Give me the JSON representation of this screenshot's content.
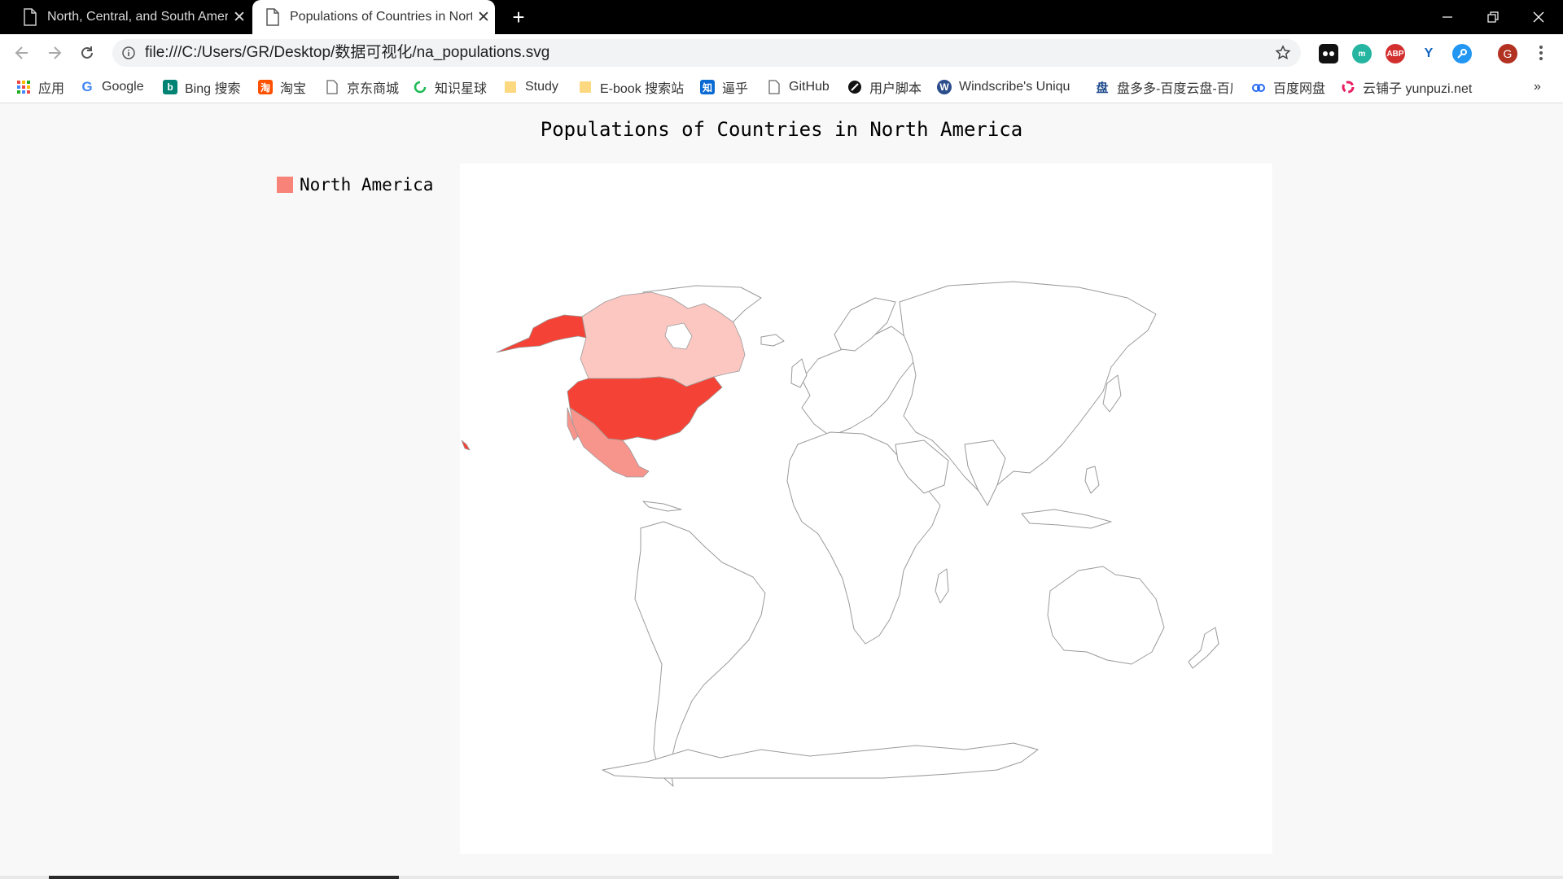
{
  "browser": {
    "tabs": [
      {
        "label": "North, Central, and South America",
        "active": false
      },
      {
        "label": "Populations of Countries in North America",
        "active": true
      }
    ],
    "address_bar": {
      "url": "file:///C:/Users/GR/Desktop/数据可视化/na_populations.svg"
    },
    "profile_initial": "G",
    "extensions": [
      {
        "name": "extension-1",
        "text": ""
      },
      {
        "name": "extension-2",
        "text": "m"
      },
      {
        "name": "adblock",
        "text": "ABP"
      },
      {
        "name": "extension-4",
        "text": "Y"
      },
      {
        "name": "extension-5",
        "text": ""
      }
    ],
    "bookmarks": [
      {
        "label": "应用",
        "icon": "apps-grid-icon"
      },
      {
        "label": "Google",
        "icon": "google-icon"
      },
      {
        "label": "Bing 搜索",
        "icon": "bing-icon"
      },
      {
        "label": "淘宝",
        "icon": "taobao-icon"
      },
      {
        "label": "京东商城",
        "icon": "page-icon"
      },
      {
        "label": "知识星球",
        "icon": "ring-icon"
      },
      {
        "label": "Study",
        "icon": "folder-icon"
      },
      {
        "label": "E-book 搜索站",
        "icon": "folder-icon"
      },
      {
        "label": "逼乎",
        "icon": "zhihu-icon"
      },
      {
        "label": "GitHub",
        "icon": "page-icon"
      },
      {
        "label": "用户脚本",
        "icon": "script-icon"
      },
      {
        "label": "Windscribe's Uniqu",
        "icon": "windscribe-icon"
      },
      {
        "label": "盘多多-百度云盘-百度",
        "icon": "pan-icon"
      },
      {
        "label": "百度网盘",
        "icon": "baidu-pan-icon"
      },
      {
        "label": "云铺子 yunpuzi.net",
        "icon": "yunpuzi-icon"
      }
    ],
    "more_bookmarks": "»"
  },
  "page": {
    "title": "Populations of Countries in North America",
    "legend": [
      {
        "label": "North America",
        "color": "#f88379"
      }
    ],
    "countries": [
      {
        "name": "Canada",
        "color": "#fcc6c1"
      },
      {
        "name": "United States",
        "color": "#f44336"
      },
      {
        "name": "Mexico",
        "color": "#f7958d"
      }
    ],
    "other_countries_color": "#ffffff",
    "border_color": "#9a9a9a"
  }
}
